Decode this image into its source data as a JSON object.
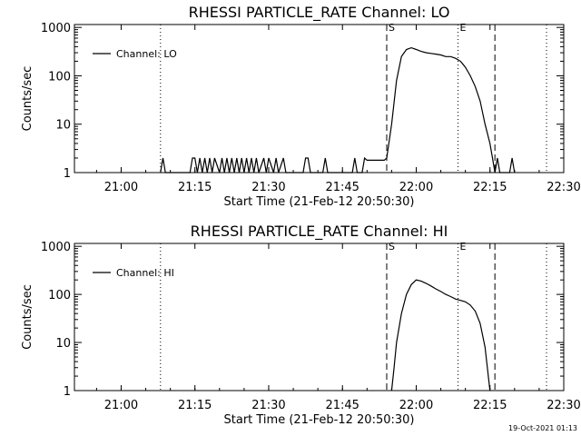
{
  "timestamp": "19-Oct-2021 01:13",
  "chart_data": [
    {
      "type": "line",
      "title": "RHESSI PARTICLE_RATE Channel: LO",
      "xlabel": "Start Time (21-Feb-12 20:50:30)",
      "ylabel": "Counts/sec",
      "yscale": "log",
      "ylim": [
        1,
        1000
      ],
      "xlim": [
        "20:50:30",
        "22:30:00"
      ],
      "x_ticks": [
        "21:00",
        "21:15",
        "21:30",
        "21:45",
        "22:00",
        "22:15",
        "22:30"
      ],
      "y_ticks": [
        "1",
        "10",
        "100",
        "1000"
      ],
      "legend": "top-left",
      "series": [
        {
          "name": "Channel: LO",
          "x": [
            "21:08:00",
            "21:08:30",
            "21:09:00",
            "21:14:00",
            "21:14:30",
            "21:15:00",
            "21:15:30",
            "21:16:00",
            "21:16:30",
            "21:17:00",
            "21:17:30",
            "21:18:00",
            "21:18:30",
            "21:19:00",
            "21:20:00",
            "21:20:30",
            "21:21:00",
            "21:21:30",
            "21:22:00",
            "21:22:30",
            "21:23:00",
            "21:23:30",
            "21:24:00",
            "21:24:30",
            "21:25:00",
            "21:25:30",
            "21:26:00",
            "21:26:30",
            "21:27:00",
            "21:27:30",
            "21:28:00",
            "21:29:00",
            "21:29:30",
            "21:30:00",
            "21:31:00",
            "21:31:30",
            "21:32:00",
            "21:33:00",
            "21:33:30",
            "21:34:00",
            "21:37:00",
            "21:37:30",
            "21:38:00",
            "21:38:30",
            "21:39:00",
            "21:41:00",
            "21:41:30",
            "21:42:00",
            "21:47:00",
            "21:47:30",
            "21:48:00",
            "21:49:00",
            "21:49:30",
            "21:50:00",
            "21:53:00",
            "21:53:30",
            "21:54:00",
            "21:55:00",
            "21:56:00",
            "21:57:00",
            "21:58:00",
            "21:59:00",
            "22:00:00",
            "22:01:00",
            "22:02:00",
            "22:03:00",
            "22:04:00",
            "22:05:00",
            "22:06:00",
            "22:07:00",
            "22:08:00",
            "22:09:00",
            "22:10:00",
            "22:11:00",
            "22:12:00",
            "22:13:00",
            "22:14:00",
            "22:15:00",
            "22:15:30",
            "22:16:00",
            "22:16:30",
            "22:17:00",
            "22:19:00",
            "22:19:30",
            "22:20:00"
          ],
          "y": [
            1,
            2,
            1,
            1,
            2,
            2,
            1,
            2,
            1,
            2,
            1,
            2,
            1,
            2,
            1,
            2,
            1,
            2,
            1,
            2,
            1,
            2,
            1,
            2,
            1,
            2,
            1,
            2,
            1,
            2,
            1,
            2,
            1,
            2,
            1,
            2,
            1,
            2,
            1,
            1,
            1,
            2,
            2,
            1,
            1,
            1,
            2,
            1,
            1,
            2,
            1,
            1,
            2,
            1.8,
            1.8,
            1.8,
            2,
            10,
            80,
            250,
            350,
            380,
            350,
            320,
            300,
            290,
            280,
            270,
            250,
            250,
            230,
            200,
            150,
            100,
            60,
            30,
            10,
            4,
            2,
            1,
            2,
            1,
            1,
            2,
            1
          ]
        }
      ],
      "markers": {
        "dashed": [
          {
            "x": "21:54:00",
            "label": "S"
          },
          {
            "x": "22:16:00",
            "label": ""
          }
        ],
        "dotted": [
          {
            "x": "21:08:00",
            "label": ""
          },
          {
            "x": "22:08:30",
            "label": "E"
          },
          {
            "x": "22:26:30",
            "label": ""
          }
        ]
      }
    },
    {
      "type": "line",
      "title": "RHESSI PARTICLE_RATE Channel: HI",
      "xlabel": "Start Time (21-Feb-12 20:50:30)",
      "ylabel": "Counts/sec",
      "yscale": "log",
      "ylim": [
        1,
        1000
      ],
      "xlim": [
        "20:50:30",
        "22:30:00"
      ],
      "x_ticks": [
        "21:00",
        "21:15",
        "21:30",
        "21:45",
        "22:00",
        "22:15",
        "22:30"
      ],
      "y_ticks": [
        "1",
        "10",
        "100",
        "1000"
      ],
      "legend": "top-left",
      "series": [
        {
          "name": "Channel: HI",
          "x": [
            "21:55:00",
            "21:55:30",
            "21:56:00",
            "21:57:00",
            "21:58:00",
            "21:59:00",
            "22:00:00",
            "22:01:00",
            "22:02:00",
            "22:03:00",
            "22:04:00",
            "22:05:00",
            "22:06:00",
            "22:07:00",
            "22:08:00",
            "22:09:00",
            "22:10:00",
            "22:11:00",
            "22:12:00",
            "22:13:00",
            "22:14:00",
            "22:15:00"
          ],
          "y": [
            1,
            3,
            10,
            40,
            100,
            160,
            200,
            190,
            170,
            150,
            130,
            115,
            100,
            90,
            80,
            75,
            70,
            60,
            45,
            25,
            8,
            1
          ]
        }
      ],
      "markers": {
        "dashed": [
          {
            "x": "21:54:00",
            "label": "S"
          },
          {
            "x": "22:16:00",
            "label": ""
          }
        ],
        "dotted": [
          {
            "x": "21:08:00",
            "label": ""
          },
          {
            "x": "22:08:30",
            "label": "E"
          },
          {
            "x": "22:26:30",
            "label": ""
          }
        ]
      }
    }
  ]
}
